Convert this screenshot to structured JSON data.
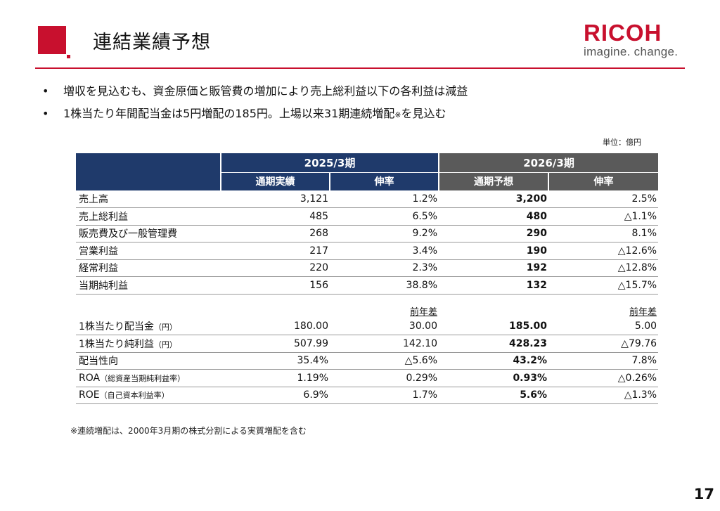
{
  "header": {
    "title": "連結業績予想",
    "logo_main": "RICOH",
    "logo_sub": "imagine. change."
  },
  "bullets": {
    "b1": "増収を見込むも、資金原価と販管費の増加により売上総利益以下の各利益は減益",
    "b2_text": "1株当たり年間配当金は5円増配の185円。上場以来31期連続増配",
    "b2_mark": "※",
    "b2_tail": "を見込む"
  },
  "unit": "単位：億円",
  "table": {
    "period1": "2025/3期",
    "period2": "2026/3期",
    "sub1": "通期実績",
    "sub2": "伸率",
    "sub3": "通期予想",
    "sub4": "伸率",
    "rows": [
      {
        "label": "売上高",
        "v1": "3,121",
        "v2": "1.2%",
        "v3": "3,200",
        "v4": "2.5%"
      },
      {
        "label": "売上総利益",
        "v1": "485",
        "v2": "6.5%",
        "v3": "480",
        "v4": "△1.1%"
      },
      {
        "label": "販売費及び一般管理費",
        "v1": "268",
        "v2": "9.2%",
        "v3": "290",
        "v4": "8.1%"
      },
      {
        "label": "営業利益",
        "v1": "217",
        "v2": "3.4%",
        "v3": "190",
        "v4": "△12.6%"
      },
      {
        "label": "経常利益",
        "v1": "220",
        "v2": "2.3%",
        "v3": "192",
        "v4": "△12.8%"
      },
      {
        "label": "当期純利益",
        "v1": "156",
        "v2": "38.8%",
        "v3": "132",
        "v4": "△15.7%"
      }
    ],
    "diff_label_1": "前年差",
    "diff_label_2": "前年差",
    "rows2": [
      {
        "label": "1株当たり配当金",
        "label_sub": "（円）",
        "v1": "180.00",
        "v2": "30.00",
        "v3": "185.00",
        "v4": "5.00"
      },
      {
        "label": "1株当たり純利益",
        "label_sub": "（円）",
        "v1": "507.99",
        "v2": "142.10",
        "v3": "428.23",
        "v4": "△79.76"
      },
      {
        "label": "配当性向",
        "label_sub": "",
        "v1": "35.4%",
        "v2": "△5.6%",
        "v3": "43.2%",
        "v4": "7.8%"
      },
      {
        "label": "ROA",
        "label_sub": "（総資産当期純利益率）",
        "v1": "1.19%",
        "v2": "0.29%",
        "v3": "0.93%",
        "v4": "△0.26%"
      },
      {
        "label": "ROE",
        "label_sub": "（自己資本利益率）",
        "v1": "6.9%",
        "v2": "1.7%",
        "v3": "5.6%",
        "v4": "△1.3%"
      }
    ]
  },
  "footnote": "※連続増配は、2000年3月期の株式分割による実質増配を含む",
  "page_number": "17",
  "colors": {
    "accent_red": "#c8102e",
    "navy": "#1f3a6b",
    "gray": "#5a5a5a"
  }
}
